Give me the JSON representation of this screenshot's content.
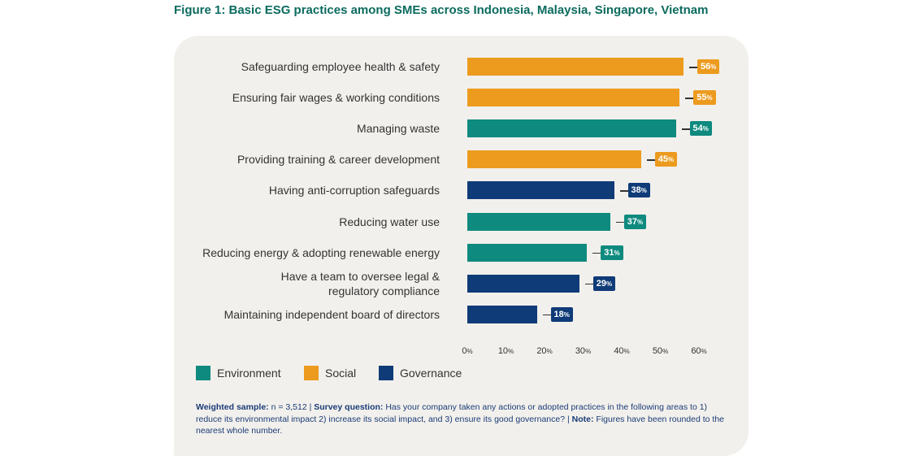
{
  "title": "Figure 1: Basic ESG practices among SMEs across Indonesia, Malaysia, Singapore, Vietnam",
  "colors": {
    "Environment": "#0e8a7f",
    "Social": "#ec9b1e",
    "Governance": "#0f3b78"
  },
  "chart_data": {
    "type": "bar",
    "orientation": "horizontal",
    "categories": [
      "Safeguarding employee health & safety",
      "Ensuring fair wages & working conditions",
      "Managing waste",
      "Providing training & career development",
      "Having anti-corruption safeguards",
      "Reducing water use",
      "Reducing energy & adopting renewable energy",
      "Have a team to oversee legal & regulatory compliance",
      "Maintaining independent board of directors"
    ],
    "category_lines": [
      [
        "Safeguarding employee health & safety"
      ],
      [
        "Ensuring fair wages & working conditions"
      ],
      [
        "Managing waste"
      ],
      [
        "Providing training & career development"
      ],
      [
        "Having anti-corruption safeguards"
      ],
      [
        "Reducing water use"
      ],
      [
        "Reducing energy & adopting renewable energy"
      ],
      [
        "Have a team to oversee legal &",
        "regulatory compliance"
      ],
      [
        "Maintaining independent board of directors"
      ]
    ],
    "values": [
      56,
      55,
      54,
      45,
      38,
      37,
      31,
      29,
      18
    ],
    "groups": [
      "Social",
      "Social",
      "Environment",
      "Social",
      "Governance",
      "Environment",
      "Environment",
      "Governance",
      "Governance"
    ],
    "value_unit": "%",
    "xlim": [
      0,
      60
    ],
    "xticks": [
      0,
      10,
      20,
      30,
      40,
      50,
      60
    ],
    "grid": false,
    "legend": [
      "Environment",
      "Social",
      "Governance"
    ],
    "legend_position": "bottom-left"
  },
  "footnote": {
    "sample_label": "Weighted sample:",
    "sample_text": " n = 3,512 | ",
    "question_label": "Survey question:",
    "question_text": " Has your company taken any actions or adopted practices in the following areas to 1) reduce its environmental impact 2) increase its social impact, and 3) ensure its good governance? | ",
    "note_label": "Note:",
    "note_text": " Figures have been rounded to the nearest whole number."
  }
}
